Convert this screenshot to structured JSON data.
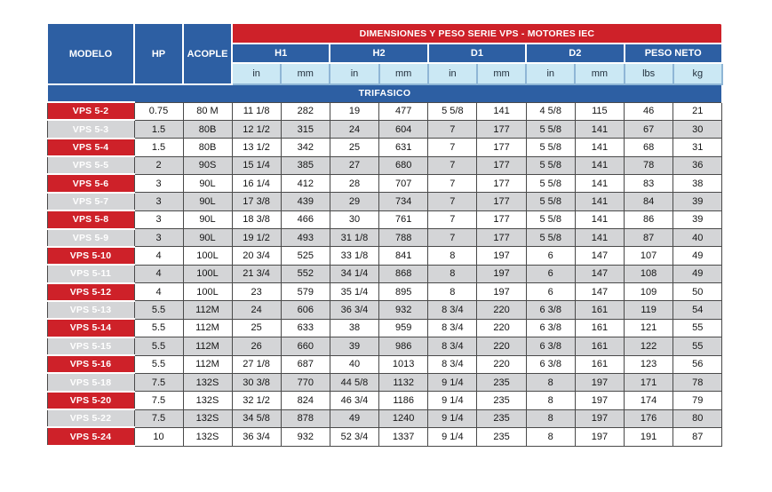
{
  "title_banner": "DIMENSIONES Y PESO SERIE VPS - MOTORES IEC",
  "header": {
    "modelo": "MODELO",
    "hp": "HP",
    "acople": "ACOPLE",
    "groups": [
      "H1",
      "H2",
      "D1",
      "D2",
      "PESO NETO"
    ],
    "units": [
      "in",
      "mm",
      "in",
      "mm",
      "in",
      "mm",
      "in",
      "mm",
      "lbs",
      "kg"
    ]
  },
  "section_label": "TRIFASICO",
  "rows": [
    {
      "model": "VPS 5-2",
      "hp": "0.75",
      "acople": "80 M",
      "values": [
        "11 1/8",
        "282",
        "19",
        "477",
        "5 5/8",
        "141",
        "4 5/8",
        "115",
        "46",
        "21"
      ]
    },
    {
      "model": "VPS 5-3",
      "hp": "1.5",
      "acople": "80B",
      "values": [
        "12 1/2",
        "315",
        "24",
        "604",
        "7",
        "177",
        "5 5/8",
        "141",
        "67",
        "30"
      ]
    },
    {
      "model": "VPS 5-4",
      "hp": "1.5",
      "acople": "80B",
      "values": [
        "13 1/2",
        "342",
        "25",
        "631",
        "7",
        "177",
        "5 5/8",
        "141",
        "68",
        "31"
      ]
    },
    {
      "model": "VPS 5-5",
      "hp": "2",
      "acople": "90S",
      "values": [
        "15 1/4",
        "385",
        "27",
        "680",
        "7",
        "177",
        "5 5/8",
        "141",
        "78",
        "36"
      ]
    },
    {
      "model": "VPS 5-6",
      "hp": "3",
      "acople": "90L",
      "values": [
        "16 1/4",
        "412",
        "28",
        "707",
        "7",
        "177",
        "5 5/8",
        "141",
        "83",
        "38"
      ]
    },
    {
      "model": "VPS 5-7",
      "hp": "3",
      "acople": "90L",
      "values": [
        "17 3/8",
        "439",
        "29",
        "734",
        "7",
        "177",
        "5 5/8",
        "141",
        "84",
        "39"
      ]
    },
    {
      "model": "VPS 5-8",
      "hp": "3",
      "acople": "90L",
      "values": [
        "18 3/8",
        "466",
        "30",
        "761",
        "7",
        "177",
        "5 5/8",
        "141",
        "86",
        "39"
      ]
    },
    {
      "model": "VPS 5-9",
      "hp": "3",
      "acople": "90L",
      "values": [
        "19 1/2",
        "493",
        "31 1/8",
        "788",
        "7",
        "177",
        "5 5/8",
        "141",
        "87",
        "40"
      ]
    },
    {
      "model": "VPS 5-10",
      "hp": "4",
      "acople": "100L",
      "values": [
        "20 3/4",
        "525",
        "33 1/8",
        "841",
        "8",
        "197",
        "6",
        "147",
        "107",
        "49"
      ]
    },
    {
      "model": "VPS 5-11",
      "hp": "4",
      "acople": "100L",
      "values": [
        "21 3/4",
        "552",
        "34 1/4",
        "868",
        "8",
        "197",
        "6",
        "147",
        "108",
        "49"
      ]
    },
    {
      "model": "VPS 5-12",
      "hp": "4",
      "acople": "100L",
      "values": [
        "23",
        "579",
        "35 1/4",
        "895",
        "8",
        "197",
        "6",
        "147",
        "109",
        "50"
      ]
    },
    {
      "model": "VPS 5-13",
      "hp": "5.5",
      "acople": "112M",
      "values": [
        "24",
        "606",
        "36 3/4",
        "932",
        "8 3/4",
        "220",
        "6 3/8",
        "161",
        "119",
        "54"
      ]
    },
    {
      "model": "VPS 5-14",
      "hp": "5.5",
      "acople": "112M",
      "values": [
        "25",
        "633",
        "38",
        "959",
        "8 3/4",
        "220",
        "6 3/8",
        "161",
        "121",
        "55"
      ]
    },
    {
      "model": "VPS 5-15",
      "hp": "5.5",
      "acople": "112M",
      "values": [
        "26",
        "660",
        "39",
        "986",
        "8 3/4",
        "220",
        "6 3/8",
        "161",
        "122",
        "55"
      ]
    },
    {
      "model": "VPS 5-16",
      "hp": "5.5",
      "acople": "112M",
      "values": [
        "27 1/8",
        "687",
        "40",
        "1013",
        "8 3/4",
        "220",
        "6 3/8",
        "161",
        "123",
        "56"
      ]
    },
    {
      "model": "VPS 5-18",
      "hp": "7.5",
      "acople": "132S",
      "values": [
        "30 3/8",
        "770",
        "44 5/8",
        "1132",
        "9 1/4",
        "235",
        "8",
        "197",
        "171",
        "78"
      ]
    },
    {
      "model": "VPS 5-20",
      "hp": "7.5",
      "acople": "132S",
      "values": [
        "32 1/2",
        "824",
        "46 3/4",
        "1186",
        "9 1/4",
        "235",
        "8",
        "197",
        "174",
        "79"
      ]
    },
    {
      "model": "VPS 5-22",
      "hp": "7.5",
      "acople": "132S",
      "values": [
        "34 5/8",
        "878",
        "49",
        "1240",
        "9 1/4",
        "235",
        "8",
        "197",
        "176",
        "80"
      ]
    },
    {
      "model": "VPS 5-24",
      "hp": "10",
      "acople": "132S",
      "values": [
        "36 3/4",
        "932",
        "52 3/4",
        "1337",
        "9 1/4",
        "235",
        "8",
        "197",
        "191",
        "87"
      ]
    }
  ],
  "colors": {
    "red": "#CE2129",
    "blue": "#2D5FA3",
    "light_blue": "#CBE8F4",
    "row_gray": "#D4D5D7",
    "row_white": "#FFFFFF",
    "border_dark": "#4A4A4A",
    "unit_border": "#8FB6D6"
  }
}
